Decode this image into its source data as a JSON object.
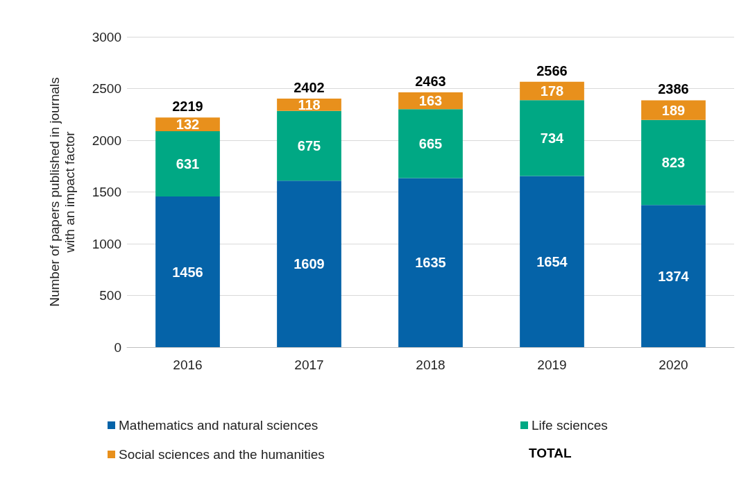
{
  "chart_data": {
    "type": "bar",
    "stacked": true,
    "ylabel": "Number of papers published in journals\nwith an impact factor",
    "categories": [
      "2016",
      "2017",
      "2018",
      "2019",
      "2020"
    ],
    "series": [
      {
        "name": "Mathematics and natural sciences",
        "color": "#0563a8",
        "values": [
          1456,
          1609,
          1635,
          1654,
          1374
        ]
      },
      {
        "name": "Life sciences",
        "color": "#00a884",
        "values": [
          631,
          675,
          665,
          734,
          823
        ]
      },
      {
        "name": "Social sciences and the humanities",
        "color": "#e8901c",
        "values": [
          132,
          118,
          163,
          178,
          189
        ]
      }
    ],
    "totals": [
      "2219",
      "2402",
      "2463",
      "2566",
      "2386"
    ],
    "annotations": [
      "TOTAL"
    ],
    "data_labels": true,
    "ylim": [
      0,
      3000
    ],
    "yticks": [
      0,
      500,
      1000,
      1500,
      2000,
      2500,
      3000
    ],
    "grid": "y",
    "legend": "bottom"
  }
}
